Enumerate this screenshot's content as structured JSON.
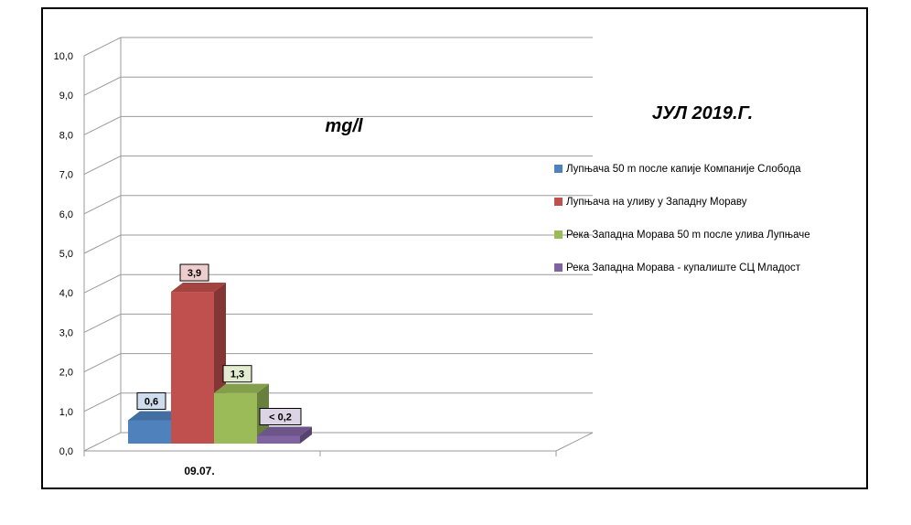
{
  "chart_data": {
    "type": "bar",
    "title": "ЈУЛ 2019.Г.",
    "ylabel": "mg/l",
    "categories": [
      "09.07."
    ],
    "ylim": [
      0,
      10
    ],
    "yticks": [
      "0,0",
      "1,0",
      "2,0",
      "3,0",
      "4,0",
      "5,0",
      "6,0",
      "7,0",
      "8,0",
      "9,0",
      "10,0"
    ],
    "series": [
      {
        "name": "Лупњача 50 m после капије Компаније Слобода",
        "values": [
          0.6
        ],
        "labels": [
          "0,6"
        ],
        "color": "#4f81bd"
      },
      {
        "name": "Лупњача на уливу у Западну Мораву",
        "values": [
          3.9
        ],
        "labels": [
          "3,9"
        ],
        "color": "#c0504d"
      },
      {
        "name": "Река Западна Морава 50 m после улива Лупњаче",
        "values": [
          1.3
        ],
        "labels": [
          "1,3"
        ],
        "color": "#9bbb59"
      },
      {
        "name": "Река Западна Морава - купалиште СЦ Младост",
        "values": [
          0.2
        ],
        "labels": [
          "< 0,2"
        ],
        "color": "#8064a2"
      }
    ],
    "grid": true,
    "legend": "right"
  }
}
